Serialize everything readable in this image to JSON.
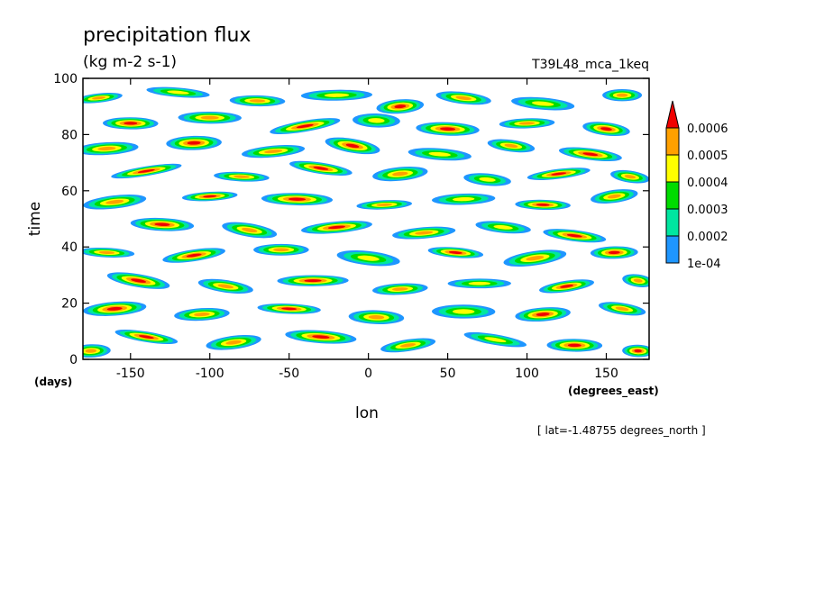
{
  "chart_data": {
    "type": "heatmap",
    "title": "precipitation flux",
    "units": "(kg m-2 s-1)",
    "run_label": "T39L48_mca_1keq",
    "xlabel": "lon",
    "xunits": "(degrees_east)",
    "ylabel": "time",
    "yunits": "(days)",
    "footnote": "[ lat=-1.48755 degrees_north ]",
    "xlim": [
      -180,
      177
    ],
    "ylim": [
      0,
      100
    ],
    "xticks": [
      -150,
      -100,
      -50,
      0,
      50,
      100,
      150
    ],
    "xtick_labels": [
      "-150",
      "-100",
      "-50",
      "0",
      "50",
      "100",
      "150"
    ],
    "yticks": [
      0,
      20,
      40,
      60,
      80,
      100
    ],
    "ytick_labels": [
      "0",
      "20",
      "40",
      "60",
      "80",
      "100"
    ],
    "colorbar": {
      "levels": [
        0.0001,
        0.0002,
        0.0003,
        0.0004,
        0.0005,
        0.0006
      ],
      "labels": [
        "1e-04",
        "0.0002",
        "0.0003",
        "0.0004",
        "0.0005",
        "0.0006"
      ],
      "colors": [
        "#1e96ff",
        "#00e6a0",
        "#00dc00",
        "#ffff00",
        "#ffa000",
        "#f00000"
      ],
      "extend": "max"
    },
    "grid": false,
    "legend_position": "right",
    "features": [
      {
        "lon": -170,
        "day": 93,
        "len": 30,
        "level": 4
      },
      {
        "lon": -120,
        "day": 95,
        "len": 40,
        "level": 3
      },
      {
        "lon": -70,
        "day": 92,
        "len": 35,
        "level": 4
      },
      {
        "lon": -20,
        "day": 94,
        "len": 45,
        "level": 3
      },
      {
        "lon": 20,
        "day": 90,
        "len": 30,
        "level": 5
      },
      {
        "lon": 60,
        "day": 93,
        "len": 35,
        "level": 4
      },
      {
        "lon": 110,
        "day": 91,
        "len": 40,
        "level": 3
      },
      {
        "lon": 160,
        "day": 94,
        "len": 25,
        "level": 4
      },
      {
        "lon": -150,
        "day": 84,
        "len": 35,
        "level": 5
      },
      {
        "lon": -100,
        "day": 86,
        "len": 40,
        "level": 4
      },
      {
        "lon": -40,
        "day": 83,
        "len": 45,
        "level": 5
      },
      {
        "lon": 5,
        "day": 85,
        "len": 30,
        "level": 3
      },
      {
        "lon": 50,
        "day": 82,
        "len": 40,
        "level": 5
      },
      {
        "lon": 100,
        "day": 84,
        "len": 35,
        "level": 4
      },
      {
        "lon": 150,
        "day": 82,
        "len": 30,
        "level": 5
      },
      {
        "lon": -165,
        "day": 75,
        "len": 40,
        "level": 4
      },
      {
        "lon": -110,
        "day": 77,
        "len": 35,
        "level": 5
      },
      {
        "lon": -60,
        "day": 74,
        "len": 40,
        "level": 4
      },
      {
        "lon": -10,
        "day": 76,
        "len": 35,
        "level": 5
      },
      {
        "lon": 45,
        "day": 73,
        "len": 40,
        "level": 3
      },
      {
        "lon": 90,
        "day": 76,
        "len": 30,
        "level": 4
      },
      {
        "lon": 140,
        "day": 73,
        "len": 40,
        "level": 5
      },
      {
        "lon": -140,
        "day": 67,
        "len": 45,
        "level": 5
      },
      {
        "lon": -80,
        "day": 65,
        "len": 35,
        "level": 4
      },
      {
        "lon": -30,
        "day": 68,
        "len": 40,
        "level": 5
      },
      {
        "lon": 20,
        "day": 66,
        "len": 35,
        "level": 4
      },
      {
        "lon": 75,
        "day": 64,
        "len": 30,
        "level": 3
      },
      {
        "lon": 120,
        "day": 66,
        "len": 40,
        "level": 5
      },
      {
        "lon": 165,
        "day": 65,
        "len": 25,
        "level": 4
      },
      {
        "lon": -160,
        "day": 56,
        "len": 40,
        "level": 4
      },
      {
        "lon": -100,
        "day": 58,
        "len": 35,
        "level": 5
      },
      {
        "lon": -45,
        "day": 57,
        "len": 45,
        "level": 5
      },
      {
        "lon": 10,
        "day": 55,
        "len": 35,
        "level": 4
      },
      {
        "lon": 60,
        "day": 57,
        "len": 40,
        "level": 3
      },
      {
        "lon": 110,
        "day": 55,
        "len": 35,
        "level": 5
      },
      {
        "lon": 155,
        "day": 58,
        "len": 30,
        "level": 4
      },
      {
        "lon": -130,
        "day": 48,
        "len": 40,
        "level": 5
      },
      {
        "lon": -75,
        "day": 46,
        "len": 35,
        "level": 4
      },
      {
        "lon": -20,
        "day": 47,
        "len": 45,
        "level": 5
      },
      {
        "lon": 35,
        "day": 45,
        "len": 40,
        "level": 4
      },
      {
        "lon": 85,
        "day": 47,
        "len": 35,
        "level": 3
      },
      {
        "lon": 130,
        "day": 44,
        "len": 40,
        "level": 5
      },
      {
        "lon": -165,
        "day": 38,
        "len": 35,
        "level": 4
      },
      {
        "lon": -110,
        "day": 37,
        "len": 40,
        "level": 5
      },
      {
        "lon": -55,
        "day": 39,
        "len": 35,
        "level": 4
      },
      {
        "lon": 0,
        "day": 36,
        "len": 40,
        "level": 3
      },
      {
        "lon": 55,
        "day": 38,
        "len": 35,
        "level": 5
      },
      {
        "lon": 105,
        "day": 36,
        "len": 40,
        "level": 4
      },
      {
        "lon": 155,
        "day": 38,
        "len": 30,
        "level": 5
      },
      {
        "lon": -145,
        "day": 28,
        "len": 40,
        "level": 5
      },
      {
        "lon": -90,
        "day": 26,
        "len": 35,
        "level": 4
      },
      {
        "lon": -35,
        "day": 28,
        "len": 45,
        "level": 5
      },
      {
        "lon": 20,
        "day": 25,
        "len": 35,
        "level": 4
      },
      {
        "lon": 70,
        "day": 27,
        "len": 40,
        "level": 3
      },
      {
        "lon": 125,
        "day": 26,
        "len": 35,
        "level": 5
      },
      {
        "lon": 170,
        "day": 28,
        "len": 20,
        "level": 4
      },
      {
        "lon": -160,
        "day": 18,
        "len": 40,
        "level": 5
      },
      {
        "lon": -105,
        "day": 16,
        "len": 35,
        "level": 4
      },
      {
        "lon": -50,
        "day": 18,
        "len": 40,
        "level": 5
      },
      {
        "lon": 5,
        "day": 15,
        "len": 35,
        "level": 4
      },
      {
        "lon": 60,
        "day": 17,
        "len": 40,
        "level": 3
      },
      {
        "lon": 110,
        "day": 16,
        "len": 35,
        "level": 5
      },
      {
        "lon": 160,
        "day": 18,
        "len": 30,
        "level": 4
      },
      {
        "lon": -140,
        "day": 8,
        "len": 40,
        "level": 5
      },
      {
        "lon": -85,
        "day": 6,
        "len": 35,
        "level": 4
      },
      {
        "lon": -30,
        "day": 8,
        "len": 45,
        "level": 5
      },
      {
        "lon": 25,
        "day": 5,
        "len": 35,
        "level": 4
      },
      {
        "lon": 80,
        "day": 7,
        "len": 40,
        "level": 3
      },
      {
        "lon": 130,
        "day": 5,
        "len": 35,
        "level": 5
      },
      {
        "lon": -175,
        "day": 3,
        "len": 25,
        "level": 4
      },
      {
        "lon": 170,
        "day": 3,
        "len": 20,
        "level": 5
      }
    ]
  }
}
